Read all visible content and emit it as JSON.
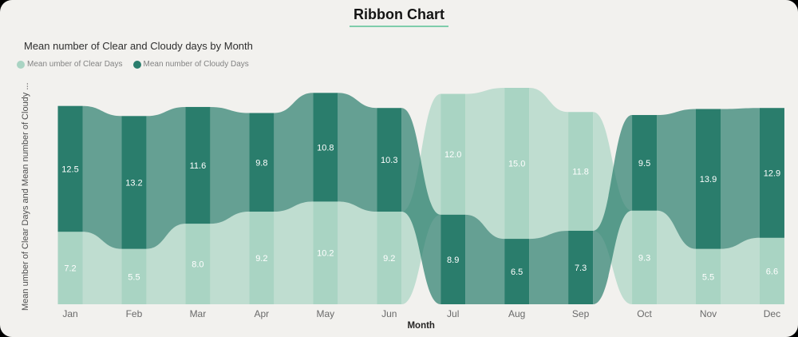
{
  "header": {
    "title": "Ribbon Chart"
  },
  "colors": {
    "background": "#f2f1ee",
    "accent_underline": "#7fcdab",
    "clear_series": "#a9d4c3",
    "cloudy_series": "#2a7d6c",
    "value_label": "#ffffff",
    "tick_label": "#6a6a6a"
  },
  "legend": [
    {
      "label": "Mean umber of Clear Days",
      "color": "#a9d4c3"
    },
    {
      "label": "Mean number of Cloudy Days",
      "color": "#2a7d6c"
    }
  ],
  "chart_data": {
    "type": "ribbon",
    "title": "Mean number of Clear and Cloudy days by Month",
    "xlabel": "Month",
    "ylabel": "Mean umber of Clear Days and Mean number of Cloudy ...",
    "categories": [
      "Jan",
      "Feb",
      "Mar",
      "Apr",
      "May",
      "Jun",
      "Jul",
      "Aug",
      "Sep",
      "Oct",
      "Nov",
      "Dec"
    ],
    "series": [
      {
        "name": "Mean umber of Clear Days",
        "color": "#a9d4c3",
        "values": [
          7.2,
          5.5,
          8.0,
          9.2,
          10.2,
          9.2,
          12.0,
          15.0,
          11.8,
          9.3,
          5.5,
          6.6
        ]
      },
      {
        "name": "Mean number of Cloudy Days",
        "color": "#2a7d6c",
        "values": [
          12.5,
          13.2,
          11.6,
          9.8,
          10.8,
          10.3,
          8.9,
          6.5,
          7.3,
          9.5,
          13.9,
          12.9
        ]
      }
    ],
    "stacking": "baseline-anchored, larger value ribbon on top",
    "connector_opacity": 0.7,
    "legend_position": "top-left",
    "grid": false
  }
}
